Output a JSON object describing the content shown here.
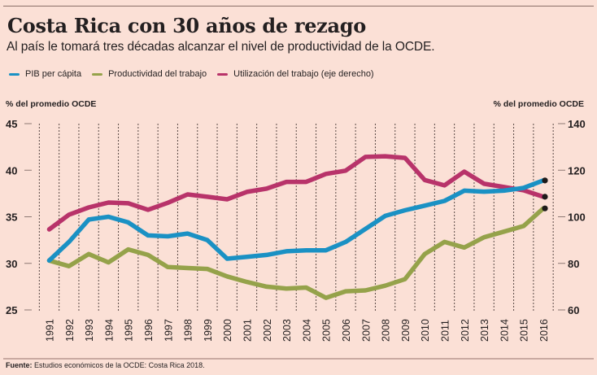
{
  "header": {
    "title": "Costa Rica con 30 años de rezago",
    "subtitle": "Al país le tomará tres décadas alcanzar el nivel de productividad de la OCDE."
  },
  "legend": [
    {
      "label": "PIB per cápita",
      "color": "#1a91c4"
    },
    {
      "label": "Productividad del trabajo",
      "color": "#95a24a"
    },
    {
      "label": "Utilización del trabajo (eje derecho)",
      "color": "#b8336a"
    }
  ],
  "footer": {
    "source_label": "Fuente:",
    "source_text": "Estudios económicos de la OCDE: Costa Rica 2018."
  },
  "chart_data": {
    "type": "line",
    "title": "Costa Rica con 30 años de rezago",
    "subtitle": "Al país le tomará tres décadas alcanzar el nivel de productividad de la OCDE.",
    "xlabel": "",
    "ylabel": "% del promedio OCDE",
    "ylabel_right": "% del promedio OCDE",
    "ylim": [
      25,
      45
    ],
    "ylim_right": [
      60,
      140
    ],
    "yticks": [
      45,
      40,
      35,
      30,
      25
    ],
    "yticks_right": [
      140,
      120,
      100,
      80,
      60
    ],
    "grid": "vertical dotted",
    "legend_position": "top-left",
    "x": [
      "1991",
      "1992",
      "1993",
      "1994",
      "1995",
      "1996",
      "1997",
      "1998",
      "1999",
      "2000",
      "2001",
      "2002",
      "2003",
      "2004",
      "2005",
      "2006",
      "2007",
      "2008",
      "2009",
      "2010",
      "2011",
      "2012",
      "2013",
      "2014",
      "2015",
      "2016"
    ],
    "series": [
      {
        "name": "PIB per cápita",
        "axis": "left",
        "color": "#1a91c4",
        "values": [
          30.3,
          32.3,
          34.7,
          35.0,
          34.4,
          33.0,
          32.9,
          33.2,
          32.5,
          30.5,
          30.7,
          30.9,
          31.3,
          31.4,
          31.4,
          32.3,
          33.7,
          35.1,
          35.7,
          36.2,
          36.7,
          37.8,
          37.7,
          37.8,
          38.1,
          38.9
        ]
      },
      {
        "name": "Productividad del trabajo",
        "axis": "left",
        "color": "#95a24a",
        "values": [
          30.3,
          29.7,
          31.0,
          30.1,
          31.5,
          30.9,
          29.6,
          29.5,
          29.4,
          28.6,
          28.0,
          27.5,
          27.3,
          27.4,
          26.3,
          27.0,
          27.1,
          27.6,
          28.3,
          31.0,
          32.3,
          31.7,
          32.8,
          33.4,
          34.0,
          35.9
        ]
      },
      {
        "name": "Utilización del trabajo (eje derecho)",
        "axis": "right",
        "color": "#b8336a",
        "values": [
          94.6,
          100.9,
          104.0,
          106.1,
          105.8,
          103.0,
          106.0,
          109.6,
          108.6,
          107.5,
          110.7,
          112.1,
          115.0,
          115.0,
          118.4,
          119.8,
          125.7,
          126.0,
          125.3,
          115.8,
          113.5,
          119.4,
          114.2,
          112.8,
          111.4,
          108.6
        ]
      }
    ]
  }
}
